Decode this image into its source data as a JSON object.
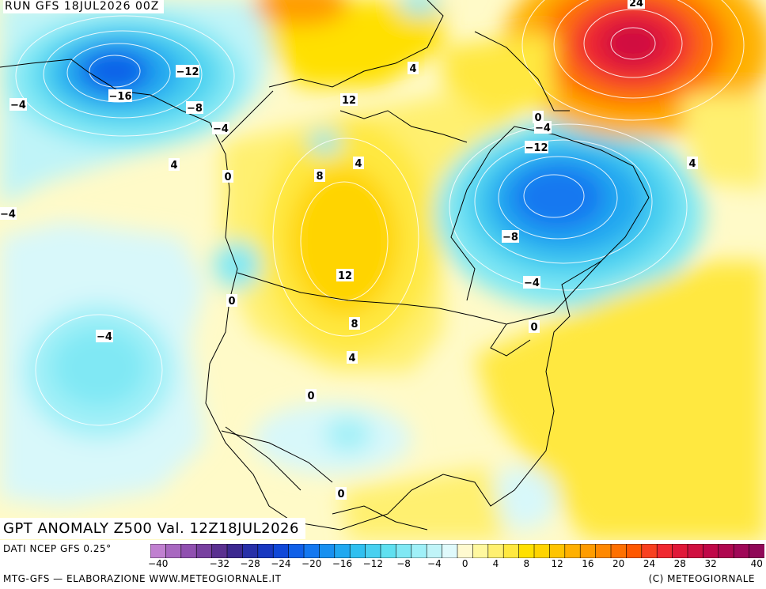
{
  "header": {
    "run_label": "RUN GFS 18JUL2026 00Z"
  },
  "title": "GPT ANOMALY Z500 Val. 12Z18JUL2026",
  "footer": {
    "source": "DATI NCEP GFS 0.25°",
    "credit_left": "MTG-GFS — ELABORAZIONE WWW.METEOGIORNALE.IT",
    "credit_right": "(C) METEOGIORNALE"
  },
  "legend": {
    "unit_steps": [
      -40,
      -38,
      -36,
      -34,
      -32,
      -30,
      -28,
      -26,
      -24,
      -22,
      -20,
      -18,
      -16,
      -14,
      -12,
      -10,
      -8,
      -6,
      -4,
      -2,
      0,
      2,
      4,
      6,
      8,
      10,
      12,
      14,
      16,
      18,
      20,
      22,
      24,
      26,
      28,
      30,
      32,
      34,
      36,
      38,
      40
    ],
    "tick_labels": [
      "-40",
      "-32",
      "-28",
      "-24",
      "-20",
      "-16",
      "-12",
      "-8",
      "-4",
      "0",
      "4",
      "8",
      "12",
      "16",
      "20",
      "24",
      "28",
      "32",
      "40"
    ],
    "colors": [
      "#c080d0",
      "#a868c0",
      "#9050b0",
      "#7840a0",
      "#5a3090",
      "#3c2890",
      "#2830a8",
      "#1838c0",
      "#1048d8",
      "#1060e8",
      "#1478f0",
      "#1890f0",
      "#20a8f0",
      "#30c0f0",
      "#48d0f0",
      "#60e0f0",
      "#80e8f4",
      "#a0f0f8",
      "#c0f4f8",
      "#e0fafc",
      "#fffad0",
      "#fff8a0",
      "#fff070",
      "#ffe840",
      "#ffe000",
      "#ffd400",
      "#ffc400",
      "#ffb000",
      "#ff9c00",
      "#ff8800",
      "#ff7000",
      "#ff5800",
      "#f84020",
      "#f02830",
      "#e01838",
      "#d01040",
      "#c00848",
      "#b00850",
      "#a00858",
      "#900858"
    ]
  },
  "map_labels": [
    {
      "text": "-12"
    },
    {
      "text": "-16"
    },
    {
      "text": "-8"
    },
    {
      "text": "-4"
    },
    {
      "text": "-4"
    },
    {
      "text": "-4"
    },
    {
      "text": "4"
    },
    {
      "text": "0"
    },
    {
      "text": "12"
    },
    {
      "text": "4"
    },
    {
      "text": "8"
    },
    {
      "text": "12"
    },
    {
      "text": "8"
    },
    {
      "text": "4"
    },
    {
      "text": "0"
    },
    {
      "text": "-4"
    },
    {
      "text": "0"
    },
    {
      "text": "0"
    },
    {
      "text": "0"
    },
    {
      "text": "-4"
    },
    {
      "text": "-12"
    },
    {
      "text": "-8"
    },
    {
      "text": "-4"
    },
    {
      "text": "0"
    },
    {
      "text": "4"
    },
    {
      "text": "24"
    },
    {
      "text": "4"
    }
  ]
}
